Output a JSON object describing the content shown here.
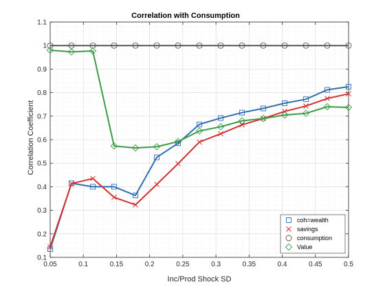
{
  "chart_data": {
    "type": "line",
    "title": "Correlation with Consumption",
    "xlabel": "Inc/Prod Shock SD",
    "ylabel": "Correlation Coefficient",
    "xlim": [
      0.05,
      0.5
    ],
    "ylim": [
      0.1,
      1.1
    ],
    "xticks": [
      0.05,
      0.1,
      0.15,
      0.2,
      0.25,
      0.3,
      0.35,
      0.4,
      0.45,
      0.5
    ],
    "xtick_labels": [
      "0.05",
      "0.1",
      "0.15",
      "0.2",
      "0.25",
      "0.3",
      "0.35",
      "0.4",
      "0.45",
      "0.5"
    ],
    "yticks": [
      0.1,
      0.2,
      0.3,
      0.4,
      0.5,
      0.6,
      0.7,
      0.8,
      0.9,
      1.0,
      1.1
    ],
    "ytick_labels": [
      "0.1",
      "0.2",
      "0.3",
      "0.4",
      "0.5",
      "0.6",
      "0.7",
      "0.8",
      "0.9",
      "1",
      "1.1"
    ],
    "grid": true,
    "minor_grid": true,
    "legend_position": "bottom-right",
    "x": [
      0.05,
      0.0821,
      0.1143,
      0.1464,
      0.1786,
      0.2107,
      0.2429,
      0.275,
      0.3071,
      0.3393,
      0.3714,
      0.4036,
      0.4357,
      0.4679,
      0.5
    ],
    "series": [
      {
        "name": "coh=wealth",
        "marker": "square",
        "color": "#2f6db3",
        "values": [
          0.135,
          0.415,
          0.4,
          0.4,
          0.363,
          0.525,
          0.585,
          0.665,
          0.692,
          0.715,
          0.733,
          0.755,
          0.772,
          0.812,
          0.825
        ]
      },
      {
        "name": "savings",
        "marker": "x",
        "color": "#d32f2f",
        "values": [
          0.145,
          0.413,
          0.435,
          0.355,
          0.323,
          0.41,
          0.498,
          0.59,
          0.625,
          0.663,
          0.69,
          0.72,
          0.743,
          0.775,
          0.795
        ]
      },
      {
        "name": "consumption",
        "marker": "circle",
        "color": "#555555",
        "values": [
          1.0,
          1.0,
          1.0,
          1.0,
          1.0,
          1.0,
          1.0,
          1.0,
          1.0,
          1.0,
          1.0,
          1.0,
          1.0,
          1.0,
          1.0
        ]
      },
      {
        "name": "Value",
        "marker": "diamond",
        "color": "#3a9a45",
        "values": [
          0.98,
          0.973,
          0.977,
          0.573,
          0.565,
          0.57,
          0.592,
          0.637,
          0.655,
          0.68,
          0.69,
          0.705,
          0.712,
          0.74,
          0.737
        ]
      }
    ]
  }
}
